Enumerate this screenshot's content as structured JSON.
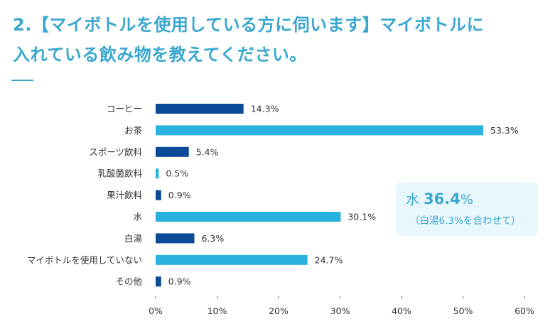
{
  "header": {
    "title_line1": "2.【マイボトルを使用している方に伺います】マイボトルに",
    "title_line2": "入れている飲み物を教えてください。"
  },
  "callout": {
    "prefix": "水 ",
    "value": "36.4",
    "unit": "%",
    "note": "（白湯6.3%を合わせて）"
  },
  "colors": {
    "title": "#3aa7cf",
    "dark_bar": "#0a4a96",
    "light_bar": "#29b1e0",
    "callout_bg": "#e8f7fc"
  },
  "chart_data": {
    "type": "bar",
    "orientation": "horizontal",
    "title": "2.【マイボトルを使用している方に伺います】マイボトルに入れている飲み物を教えてください。",
    "xlabel": "",
    "ylabel": "",
    "xlim": [
      0,
      60
    ],
    "grid": false,
    "categories": [
      "コーヒー",
      "お茶",
      "スポーツ飲料",
      "乳酸菌飲料",
      "果汁飲料",
      "水",
      "白湯",
      "マイボトルを使用していない",
      "その他"
    ],
    "values": [
      14.3,
      53.3,
      5.4,
      0.5,
      0.9,
      30.1,
      6.3,
      24.7,
      0.9
    ],
    "value_labels": [
      "14.3%",
      "53.3%",
      "5.4%",
      "0.5%",
      "0.9%",
      "30.1%",
      "6.3%",
      "24.7%",
      "0.9%"
    ],
    "bar_colors": [
      "dark",
      "light",
      "dark",
      "light",
      "dark",
      "light",
      "dark",
      "light",
      "dark"
    ],
    "xticks": [
      0,
      10,
      20,
      30,
      40,
      50,
      60
    ],
    "xtick_labels": [
      "0%",
      "10%",
      "20%",
      "30%",
      "40%",
      "50%",
      "60%"
    ]
  }
}
